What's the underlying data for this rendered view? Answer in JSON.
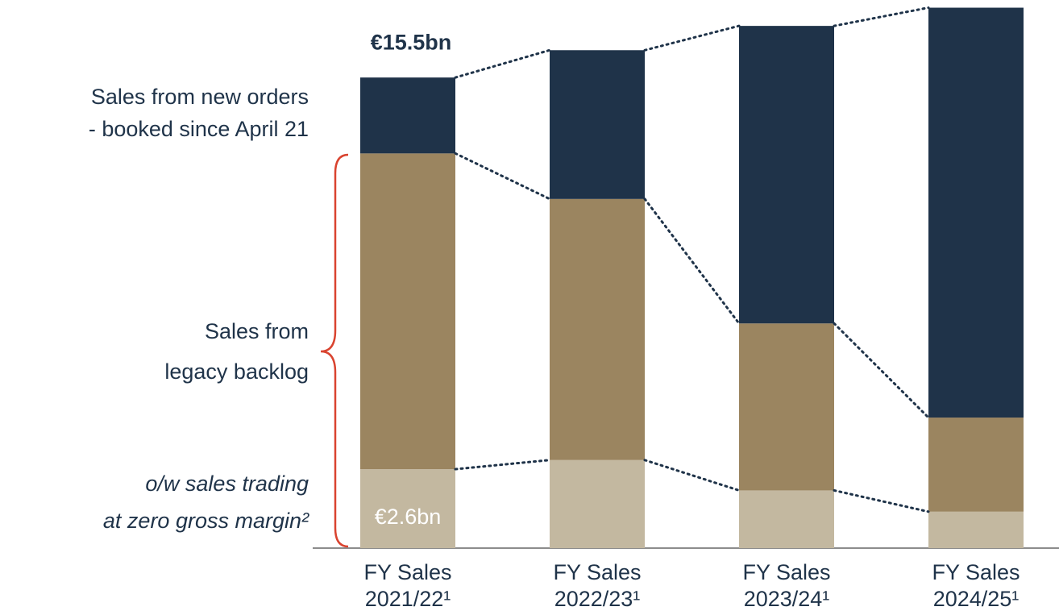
{
  "chart_data": {
    "type": "stacked_bar",
    "categories": [
      [
        "FY Sales",
        "2021/22¹"
      ],
      [
        "FY Sales",
        "2022/23¹"
      ],
      [
        "FY Sales",
        "2023/24¹"
      ],
      [
        "FY Sales",
        "2024/25¹"
      ]
    ],
    "ylim": [
      0,
      18
    ],
    "series": [
      {
        "name": [
          "o/w sales trading",
          "at zero gross margin²"
        ],
        "color": "#c3b8a0",
        "values": [
          2.6,
          2.9,
          1.9,
          1.2
        ],
        "value_labels": [
          "€2.6bn",
          null,
          null,
          null
        ]
      },
      {
        "name": [
          "Sales from",
          "legacy backlog"
        ],
        "color": "#9b8560",
        "values": [
          10.4,
          8.6,
          5.5,
          3.1
        ]
      },
      {
        "name": [
          "Sales from new orders",
          "- booked since April 21"
        ],
        "color": "#1f3349",
        "values": [
          2.5,
          4.9,
          9.8,
          13.5
        ]
      }
    ],
    "annotations": [
      {
        "text": "€15.5bn",
        "value": 15.5
      }
    ]
  }
}
